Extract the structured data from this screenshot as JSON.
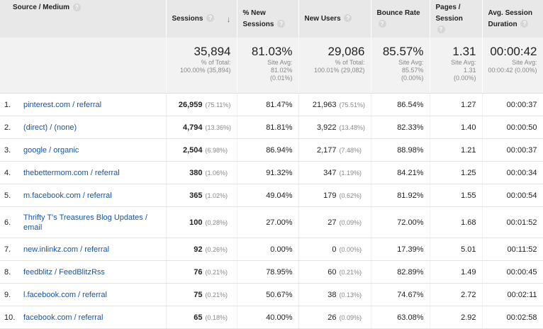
{
  "columns": {
    "source": "Source / Medium",
    "sessions": "Sessions",
    "new_sessions_line1": "% New",
    "new_sessions_line2": "Sessions",
    "new_users": "New Users",
    "bounce_rate": "Bounce Rate",
    "pages_line1": "Pages /",
    "pages_line2": "Session",
    "duration_line1": "Avg. Session",
    "duration_line2": "Duration"
  },
  "icons": {
    "help": "question-icon",
    "sort": "arrow-down-icon"
  },
  "totals": {
    "sessions": "35,894",
    "sessions_sub1": "% of Total:",
    "sessions_sub2": "100.00% (35,894)",
    "new_sessions": "81.03%",
    "new_sessions_sub1": "Site Avg:",
    "new_sessions_sub2": "81.02%",
    "new_sessions_sub3": "(0.01%)",
    "new_users": "29,086",
    "new_users_sub1": "% of Total:",
    "new_users_sub2": "100.01% (29,082)",
    "bounce_rate": "85.57%",
    "bounce_sub1": "Site Avg:",
    "bounce_sub2": "85.57%",
    "bounce_sub3": "(0.00%)",
    "pages": "1.31",
    "pages_sub1": "Site Avg:",
    "pages_sub2": "1.31",
    "pages_sub3": "(0.00%)",
    "duration": "00:00:42",
    "duration_sub1": "Site Avg:",
    "duration_sub2": "00:00:42 (0.00%)"
  },
  "rows": [
    {
      "num": "1.",
      "source": "pinterest.com / referral",
      "sessions": "26,959",
      "sessions_pct": "(75.11%)",
      "new_sessions": "81.47%",
      "new_users": "21,963",
      "new_users_pct": "(75.51%)",
      "bounce": "86.54%",
      "pages": "1.27",
      "duration": "00:00:37"
    },
    {
      "num": "2.",
      "source": "(direct) / (none)",
      "sessions": "4,794",
      "sessions_pct": "(13.36%)",
      "new_sessions": "81.81%",
      "new_users": "3,922",
      "new_users_pct": "(13.48%)",
      "bounce": "82.33%",
      "pages": "1.40",
      "duration": "00:00:50"
    },
    {
      "num": "3.",
      "source": "google / organic",
      "sessions": "2,504",
      "sessions_pct": "(6.98%)",
      "new_sessions": "86.94%",
      "new_users": "2,177",
      "new_users_pct": "(7.48%)",
      "bounce": "88.98%",
      "pages": "1.21",
      "duration": "00:00:37"
    },
    {
      "num": "4.",
      "source": "thebettermom.com / referral",
      "sessions": "380",
      "sessions_pct": "(1.06%)",
      "new_sessions": "91.32%",
      "new_users": "347",
      "new_users_pct": "(1.19%)",
      "bounce": "84.21%",
      "pages": "1.25",
      "duration": "00:00:34"
    },
    {
      "num": "5.",
      "source": "m.facebook.com / referral",
      "sessions": "365",
      "sessions_pct": "(1.02%)",
      "new_sessions": "49.04%",
      "new_users": "179",
      "new_users_pct": "(0.62%)",
      "bounce": "81.92%",
      "pages": "1.55",
      "duration": "00:00:54"
    },
    {
      "num": "6.",
      "source": "Thrifty T's Treasures Blog Updates / email",
      "sessions": "100",
      "sessions_pct": "(0.28%)",
      "new_sessions": "27.00%",
      "new_users": "27",
      "new_users_pct": "(0.09%)",
      "bounce": "72.00%",
      "pages": "1.68",
      "duration": "00:01:52"
    },
    {
      "num": "7.",
      "source": "new.inlinkz.com / referral",
      "sessions": "92",
      "sessions_pct": "(0.26%)",
      "new_sessions": "0.00%",
      "new_users": "0",
      "new_users_pct": "(0.00%)",
      "bounce": "17.39%",
      "pages": "5.01",
      "duration": "00:11:52"
    },
    {
      "num": "8.",
      "source": "feedblitz / FeedBlitzRss",
      "sessions": "76",
      "sessions_pct": "(0.21%)",
      "new_sessions": "78.95%",
      "new_users": "60",
      "new_users_pct": "(0.21%)",
      "bounce": "82.89%",
      "pages": "1.49",
      "duration": "00:00:45"
    },
    {
      "num": "9.",
      "source": "l.facebook.com / referral",
      "sessions": "75",
      "sessions_pct": "(0.21%)",
      "new_sessions": "50.67%",
      "new_users": "38",
      "new_users_pct": "(0.13%)",
      "bounce": "74.67%",
      "pages": "2.72",
      "duration": "00:02:11"
    },
    {
      "num": "10.",
      "source": "facebook.com / referral",
      "sessions": "65",
      "sessions_pct": "(0.18%)",
      "new_sessions": "40.00%",
      "new_users": "26",
      "new_users_pct": "(0.09%)",
      "bounce": "63.08%",
      "pages": "2.92",
      "duration": "00:02:58"
    }
  ]
}
